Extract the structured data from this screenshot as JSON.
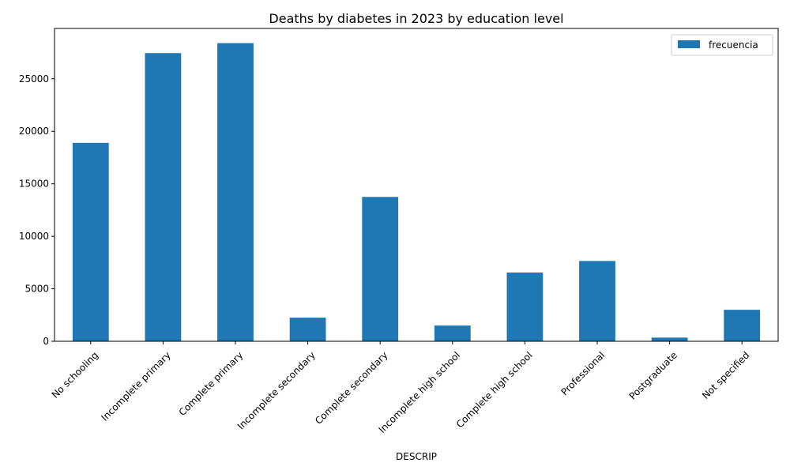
{
  "chart_data": {
    "type": "bar",
    "title": "Deaths by diabetes in 2023 by education level",
    "xlabel": "DESCRIP",
    "ylabel": "",
    "categories": [
      "No schooling",
      "Incomplete primary",
      "Complete primary",
      "Incomplete secondary",
      "Complete secondary",
      "Incomplete high school",
      "Complete high school",
      "Professional",
      "Postgraduate",
      "Not specified"
    ],
    "series": [
      {
        "name": "frecuencia",
        "color": "#1f77b4",
        "values": [
          18900,
          27450,
          28400,
          2250,
          13750,
          1500,
          6550,
          7650,
          350,
          3000
        ]
      }
    ],
    "ylim": [
      0,
      29800
    ],
    "yticks": [
      0,
      5000,
      10000,
      15000,
      20000,
      25000
    ],
    "legend": {
      "position": "top-right",
      "entries": [
        "frecuencia"
      ]
    },
    "grid": false
  }
}
